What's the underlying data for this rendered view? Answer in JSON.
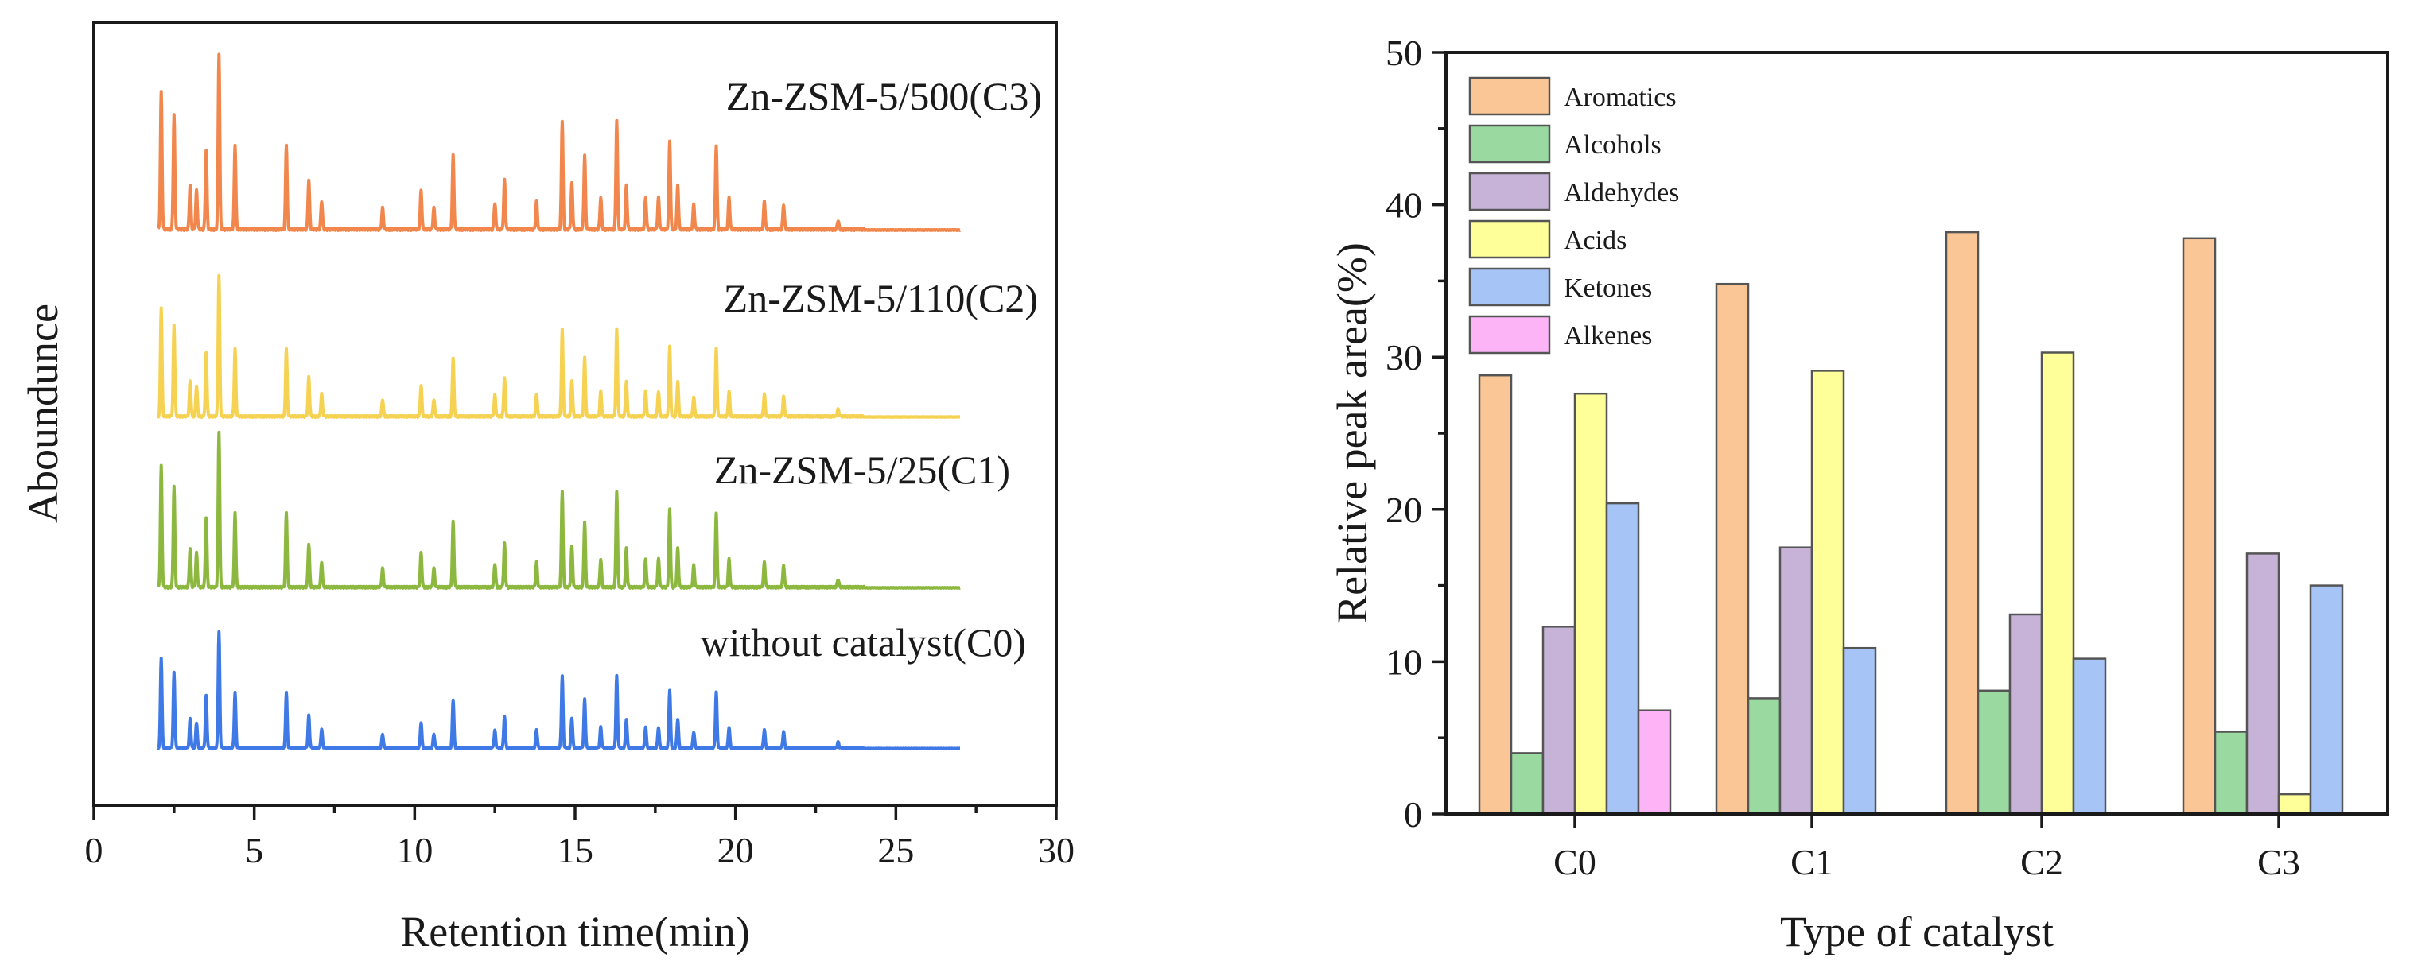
{
  "chart_data": [
    {
      "type": "line",
      "title": "",
      "xlabel": "Retention time(min)",
      "ylabel": "Aboundunce",
      "xlim": [
        0,
        30
      ],
      "xticks": [
        "0",
        "5",
        "10",
        "15",
        "20",
        "25",
        "30"
      ],
      "grid": false,
      "legend": "none",
      "peaks": [
        {
          "x": 2.1,
          "h": 0.78
        },
        {
          "x": 2.5,
          "h": 0.65
        },
        {
          "x": 3.0,
          "h": 0.25
        },
        {
          "x": 3.2,
          "h": 0.22
        },
        {
          "x": 3.5,
          "h": 0.45
        },
        {
          "x": 3.9,
          "h": 1.0
        },
        {
          "x": 4.4,
          "h": 0.48
        },
        {
          "x": 6.0,
          "h": 0.48
        },
        {
          "x": 6.7,
          "h": 0.28
        },
        {
          "x": 7.1,
          "h": 0.16
        },
        {
          "x": 9.0,
          "h": 0.12
        },
        {
          "x": 10.2,
          "h": 0.22
        },
        {
          "x": 10.6,
          "h": 0.12
        },
        {
          "x": 11.2,
          "h": 0.42
        },
        {
          "x": 12.5,
          "h": 0.15
        },
        {
          "x": 12.8,
          "h": 0.28
        },
        {
          "x": 13.8,
          "h": 0.16
        },
        {
          "x": 14.6,
          "h": 0.62
        },
        {
          "x": 14.9,
          "h": 0.26
        },
        {
          "x": 15.3,
          "h": 0.42
        },
        {
          "x": 15.8,
          "h": 0.18
        },
        {
          "x": 16.3,
          "h": 0.62
        },
        {
          "x": 16.6,
          "h": 0.25
        },
        {
          "x": 17.2,
          "h": 0.18
        },
        {
          "x": 17.6,
          "h": 0.18
        },
        {
          "x": 17.95,
          "h": 0.5
        },
        {
          "x": 18.2,
          "h": 0.25
        },
        {
          "x": 18.7,
          "h": 0.14
        },
        {
          "x": 19.4,
          "h": 0.48
        },
        {
          "x": 19.8,
          "h": 0.18
        },
        {
          "x": 20.9,
          "h": 0.16
        },
        {
          "x": 21.5,
          "h": 0.14
        },
        {
          "x": 23.2,
          "h": 0.05
        }
      ],
      "series": [
        {
          "label": "without catalyst(C0)",
          "color": "#3f79e6",
          "scale": 0.62,
          "x_start": 2.0,
          "x_end": 27.0
        },
        {
          "label": "Zn-ZSM-5/25(C1)",
          "color": "#8db83f",
          "scale": 0.83,
          "x_start": 2.0,
          "x_end": 27.0
        },
        {
          "label": "Zn-ZSM-5/110(C2)",
          "color": "#f6d253",
          "scale": 0.75,
          "x_start": 2.0,
          "x_end": 27.0
        },
        {
          "label": "Zn-ZSM-5/500(C3)",
          "color": "#f1874c",
          "scale": 0.94,
          "x_start": 2.0,
          "x_end": 27.0
        }
      ]
    },
    {
      "type": "bar",
      "title": "",
      "xlabel": "Type of catalyst",
      "ylabel": "Relative peak area(%)",
      "ylim": [
        0,
        50
      ],
      "yticks": [
        "0",
        "10",
        "20",
        "30",
        "40",
        "50"
      ],
      "categories": [
        "C0",
        "C1",
        "C2",
        "C3"
      ],
      "grid": false,
      "legend": "top-left",
      "series": [
        {
          "name": "Aromatics",
          "color": "#fbc695",
          "values": [
            28.8,
            34.8,
            38.2,
            37.8
          ]
        },
        {
          "name": "Alcohols",
          "color": "#9ad9a0",
          "values": [
            4.0,
            7.6,
            8.1,
            5.4
          ]
        },
        {
          "name": "Aldehydes",
          "color": "#c7b3d8",
          "values": [
            12.3,
            17.5,
            13.1,
            17.1
          ]
        },
        {
          "name": "Acids",
          "color": "#ffff99",
          "values": [
            27.6,
            29.1,
            30.3,
            1.3
          ]
        },
        {
          "name": "Ketones",
          "color": "#a6c5f6",
          "values": [
            20.4,
            10.9,
            10.2,
            15.0
          ]
        },
        {
          "name": "Alkenes",
          "color": "#fcb4f7",
          "values": [
            6.8,
            0,
            0,
            0
          ]
        }
      ]
    }
  ]
}
